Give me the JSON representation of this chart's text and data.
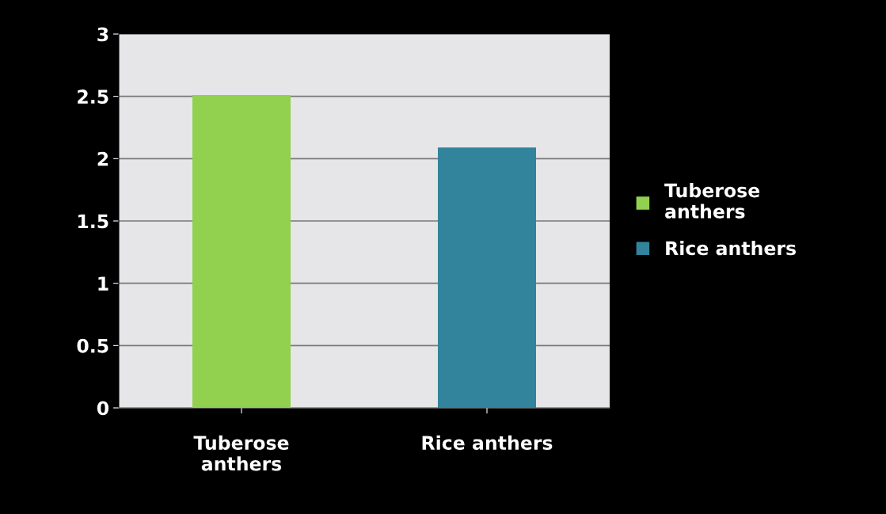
{
  "chart_data": {
    "type": "bar",
    "categories": [
      "Tuberose\nanthers",
      "Rice anthers"
    ],
    "series": [
      {
        "name": "Tuberose\nanthers",
        "color": "#92d050",
        "values": [
          2.51,
          null
        ]
      },
      {
        "name": "Rice anthers",
        "color": "#31849b",
        "values": [
          null,
          2.09
        ]
      }
    ],
    "ylim": [
      0,
      3
    ],
    "yticks": [
      0,
      0.5,
      1,
      1.5,
      2,
      2.5,
      3
    ],
    "grid": "y",
    "legend": "right"
  }
}
